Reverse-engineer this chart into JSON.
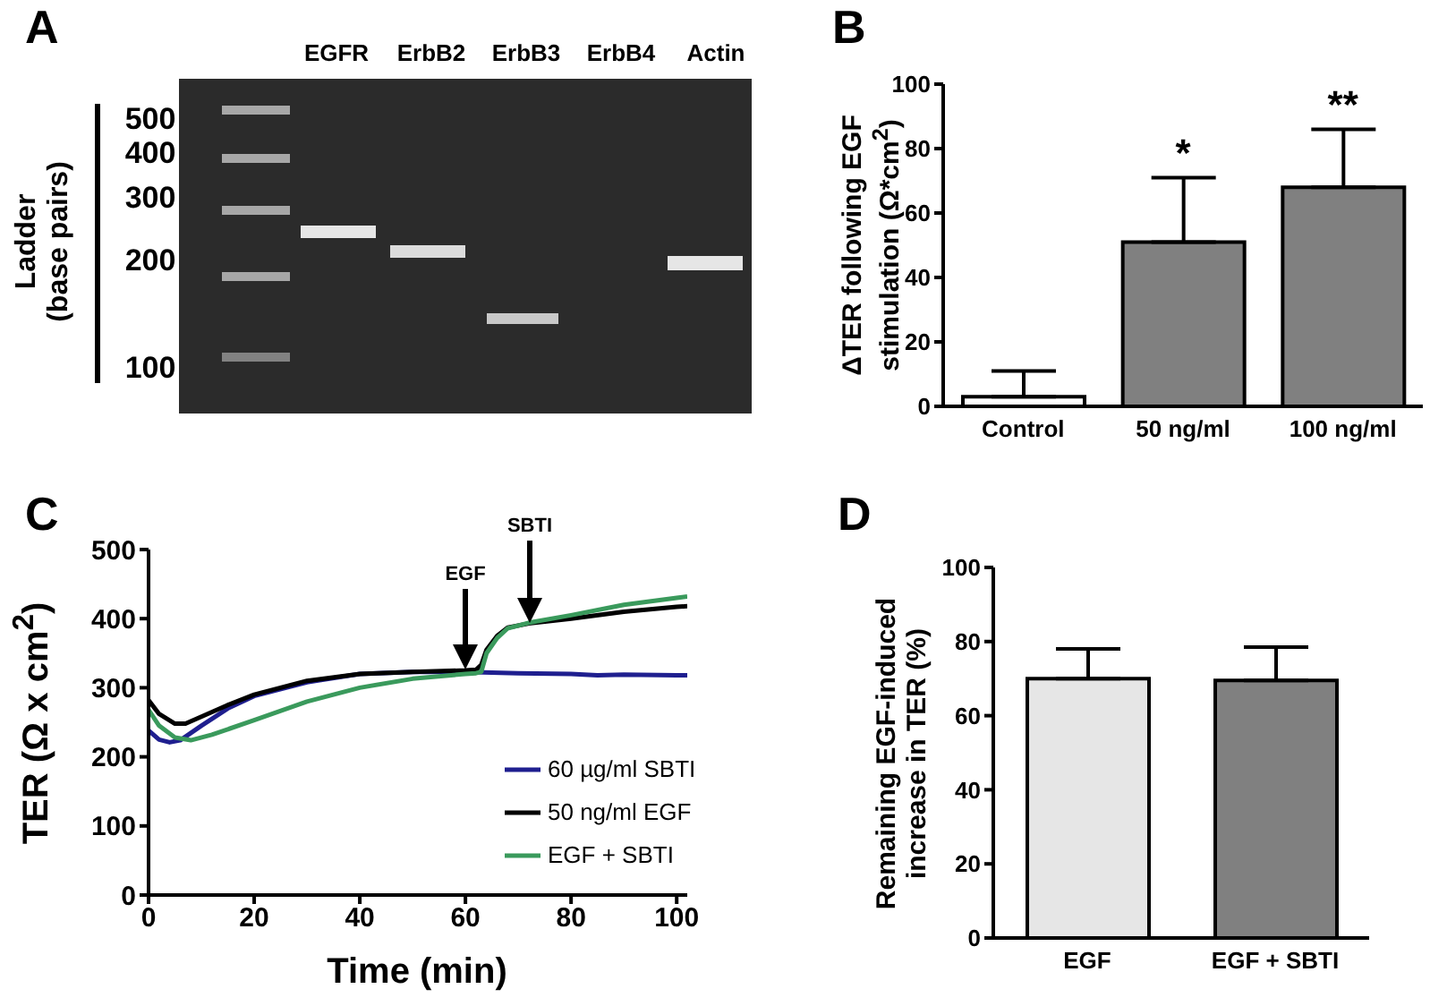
{
  "chart_data": [
    {
      "type": "other",
      "title": "A",
      "categories": [
        "EGFR",
        "ErbB2",
        "ErbB3",
        "ErbB4",
        "Actin"
      ],
      "annotations": [
        "500",
        "400",
        "300",
        "200",
        "100"
      ],
      "ylabel": "Ladder (base pairs)"
    },
    {
      "type": "bar",
      "title": "B",
      "categories": [
        "Control",
        "50 ng/ml",
        "100 ng/ml"
      ],
      "values": [
        3,
        51,
        68
      ],
      "colors": [
        "#ffffff",
        "#808080",
        "#808080"
      ],
      "errors": [
        [
          3,
          11
        ],
        [
          51,
          71
        ],
        [
          68,
          86
        ]
      ],
      "ylabel": "ΔTER following EGF stimulation (Ω*cm$^{2}$)",
      "ylim": [
        0,
        100
      ],
      "yticks": [
        0,
        20,
        40,
        60,
        80,
        100
      ],
      "grid": false,
      "annotations": [
        {
          "text": "*",
          "x": "50 ng/ml",
          "y": 71
        },
        {
          "text": "**",
          "x": "100 ng/ml",
          "y": 86
        }
      ]
    },
    {
      "type": "line",
      "title": "C",
      "xlabel": "Time (min)",
      "ylabel": "TER (Ω x cm$^{2}$)",
      "xlim": [
        0,
        102
      ],
      "xticks": [
        0,
        20,
        40,
        60,
        80,
        100
      ],
      "ylim": [
        0,
        500
      ],
      "yticks": [
        0,
        100,
        200,
        300,
        400,
        500
      ],
      "grid": false,
      "legend": "bottom right",
      "marker": "none",
      "line_style": "solid",
      "series": [
        {
          "name": "60 µg/ml SBTI",
          "color": "#1f1f8f",
          "x": [
            0,
            2,
            4,
            6,
            10,
            15,
            20,
            30,
            40,
            50,
            60,
            65,
            70,
            80,
            85,
            90,
            100,
            102
          ],
          "values": [
            238,
            225,
            221,
            224,
            245,
            270,
            288,
            308,
            320,
            323,
            323,
            322,
            321,
            320,
            318,
            319,
            318,
            318
          ]
        },
        {
          "name": "50 ng/ml EGF",
          "color": "#000000",
          "x": [
            0,
            2,
            5,
            7,
            10,
            15,
            20,
            30,
            40,
            50,
            60,
            62,
            63,
            64,
            66,
            68,
            72,
            80,
            90,
            100,
            102
          ],
          "values": [
            282,
            262,
            248,
            248,
            258,
            275,
            290,
            310,
            320,
            323,
            325,
            326,
            333,
            355,
            375,
            387,
            393,
            400,
            410,
            417,
            418
          ]
        },
        {
          "name": "EGF + SBTI",
          "color": "#3a9a5c",
          "x": [
            0,
            2,
            5,
            8,
            12,
            20,
            30,
            40,
            50,
            60,
            62,
            63,
            64,
            66,
            68,
            72,
            80,
            90,
            100,
            102
          ],
          "values": [
            268,
            245,
            228,
            224,
            232,
            253,
            280,
            300,
            313,
            320,
            321,
            323,
            350,
            372,
            386,
            394,
            405,
            420,
            430,
            432
          ]
        }
      ],
      "annotations": [
        "EGF",
        "SBTI"
      ]
    },
    {
      "type": "bar",
      "title": "D",
      "categories": [
        "EGF",
        "EGF + SBTI"
      ],
      "values": [
        70,
        69.5
      ],
      "colors": [
        "#e6e6e6",
        "#808080"
      ],
      "errors": [
        [
          70,
          78
        ],
        [
          69.5,
          78.5
        ]
      ],
      "ylabel": "Remaining EGF-induced increase in TER (%)",
      "ylim": [
        0,
        100
      ],
      "yticks": [
        0,
        20,
        40,
        60,
        80,
        100
      ],
      "grid": false
    }
  ]
}
